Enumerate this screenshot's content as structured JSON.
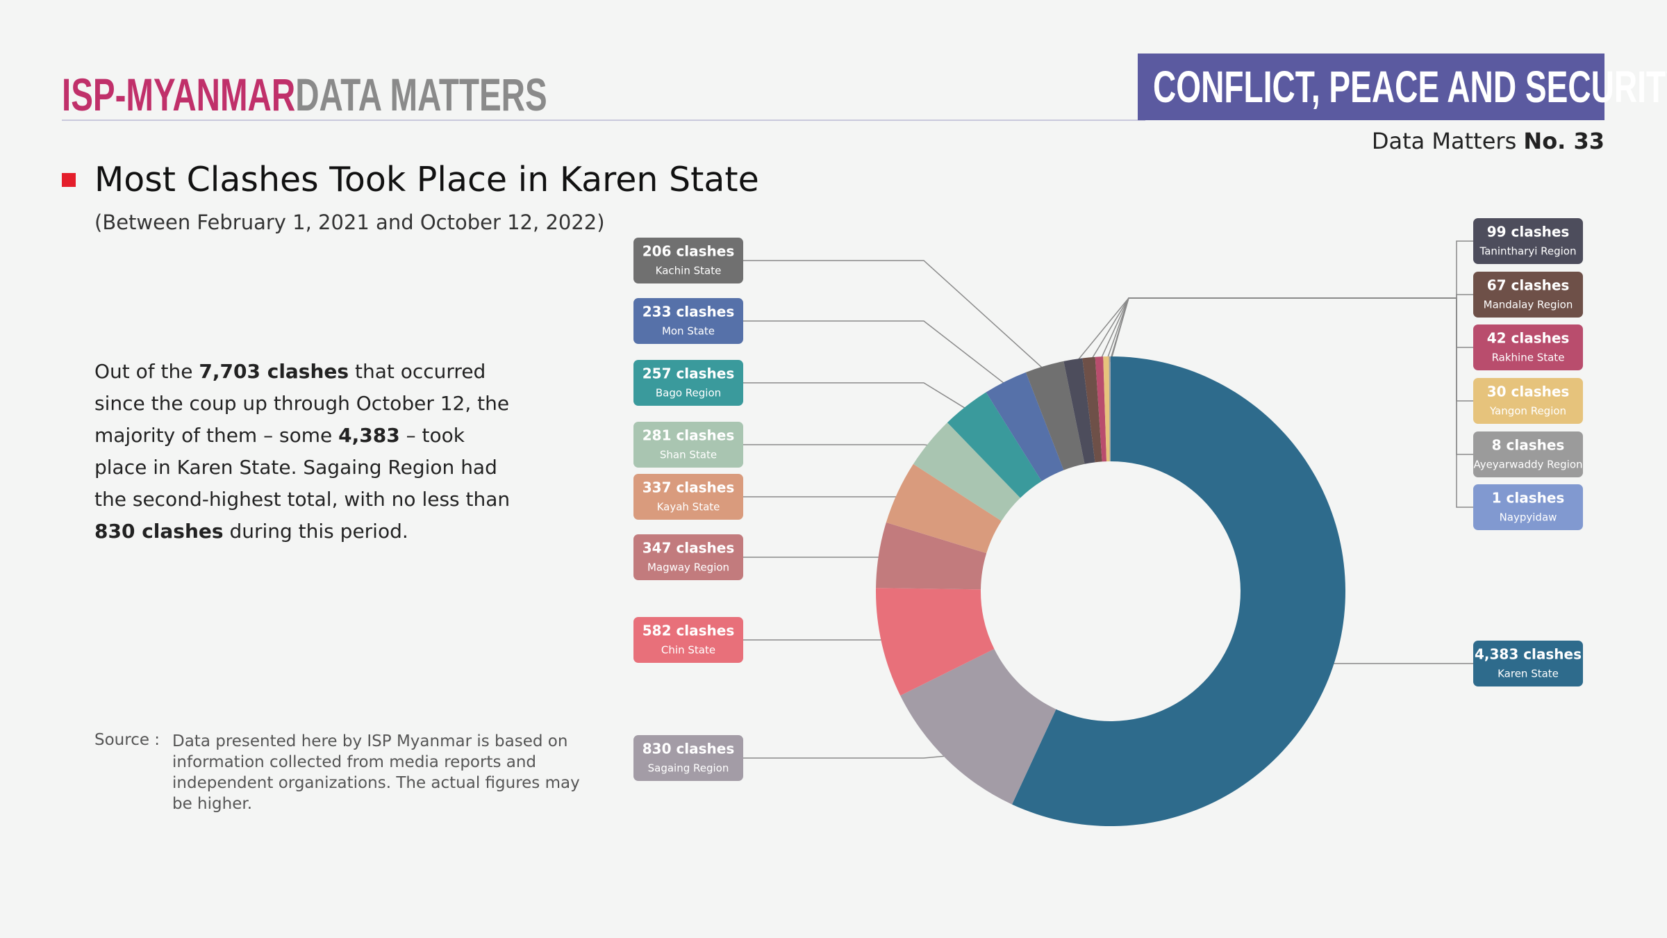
{
  "header": {
    "brand": "ISP-MYANMAR",
    "brand_suffix": "DATA MATTERS",
    "section": "CONFLICT, PEACE AND SECURITY",
    "issue_label": "Data Matters",
    "issue_number": "No. 33"
  },
  "body": [
    "Out of the ",
    "7,703 clashes",
    " that occurred since the coup up through October 12, the majority of them – some ",
    "4,383",
    " – took place in Karen State. Sagaing Region had the second-highest total, with no less than ",
    "830 clashes",
    " during this period."
  ],
  "source": {
    "label": "Source :",
    "text": "Data presented here by ISP Myanmar is based on information collected from media reports and independent organizations. The actual figures may be higher."
  },
  "chart_data": {
    "type": "donut",
    "title": "Most Clashes Took Place in Karen State",
    "subtitle": "(Between February 1, 2021 and October 12, 2022)",
    "categories": [
      "Karen State",
      "Sagaing Region",
      "Chin State",
      "Magway Region",
      "Kayah State",
      "Shan State",
      "Bago Region",
      "Mon State",
      "Kachin State",
      "Tanintharyi Region",
      "Mandalay Region",
      "Rakhine State",
      "Yangon Region",
      "Ayeyarwaddy Region",
      "Naypyidaw"
    ],
    "values": [
      4383,
      830,
      582,
      347,
      337,
      281,
      257,
      233,
      206,
      99,
      67,
      42,
      30,
      8,
      1
    ],
    "value_labels": [
      "4,383 clashes",
      "830 clashes",
      "582 clashes",
      "347 clashes",
      "337 clashes",
      "281 clashes",
      "257 clashes",
      "233 clashes",
      "206 clashes",
      "99 clashes",
      "67 clashes",
      "42 clashes",
      "30 clashes",
      "8 clashes",
      "1 clashes"
    ],
    "colors": [
      "#2e6b8c",
      "#a39ca6",
      "#e8707a",
      "#c27b7d",
      "#d99b7d",
      "#a9c5b1",
      "#3a9a9c",
      "#5671a9",
      "#707070",
      "#4d4d5c",
      "#6e5048",
      "#b94d6d",
      "#e6c37c",
      "#9b9b9b",
      "#8199d0"
    ]
  }
}
